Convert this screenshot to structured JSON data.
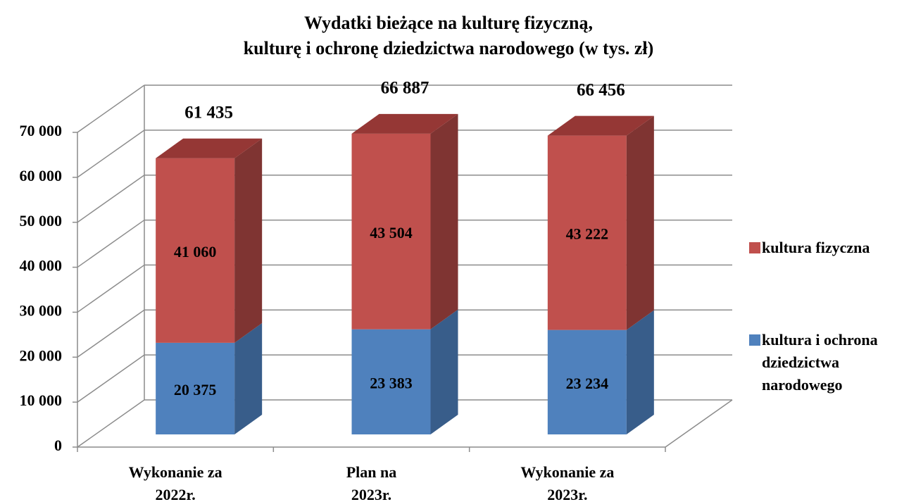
{
  "chart_data": {
    "type": "bar3d_stacked",
    "title": [
      "Wydatki bieżące na kulturę fizyczną,",
      "kulturę i ochronę dziedzictwa narodowego (w tys. zł)"
    ],
    "categories": [
      [
        "Wykonanie za",
        "2022r."
      ],
      [
        "Plan na",
        "2023r."
      ],
      [
        "Wykonanie za",
        "2023r."
      ]
    ],
    "series": [
      {
        "name": "kultura i ochrona dziedzictwa narodowego",
        "color": "#4f81bd",
        "side_color": "#385d8a",
        "top_color": "#3d6595",
        "values": [
          20375,
          23383,
          23234
        ],
        "value_labels": [
          "20 375",
          "23 383",
          "23 234"
        ]
      },
      {
        "name": "kultura fizyczna",
        "color": "#c0504d",
        "side_color": "#7f3432",
        "top_color": "#953735",
        "values": [
          41060,
          43504,
          43222
        ],
        "value_labels": [
          "41 060",
          "43 504",
          "43 222"
        ]
      }
    ],
    "totals": {
      "values": [
        61435,
        66887,
        66456
      ],
      "value_labels": [
        "61 435",
        "66 887",
        "66 456"
      ]
    },
    "ylim": [
      0,
      70000
    ],
    "yticks": [
      {
        "value": 0,
        "label": "0"
      },
      {
        "value": 10000,
        "label": "10 000"
      },
      {
        "value": 20000,
        "label": "20 000"
      },
      {
        "value": 30000,
        "label": "30 000"
      },
      {
        "value": 40000,
        "label": "40 000"
      },
      {
        "value": 50000,
        "label": "50 000"
      },
      {
        "value": 60000,
        "label": "60 000"
      },
      {
        "value": 70000,
        "label": "70 000"
      }
    ],
    "grid": true
  }
}
